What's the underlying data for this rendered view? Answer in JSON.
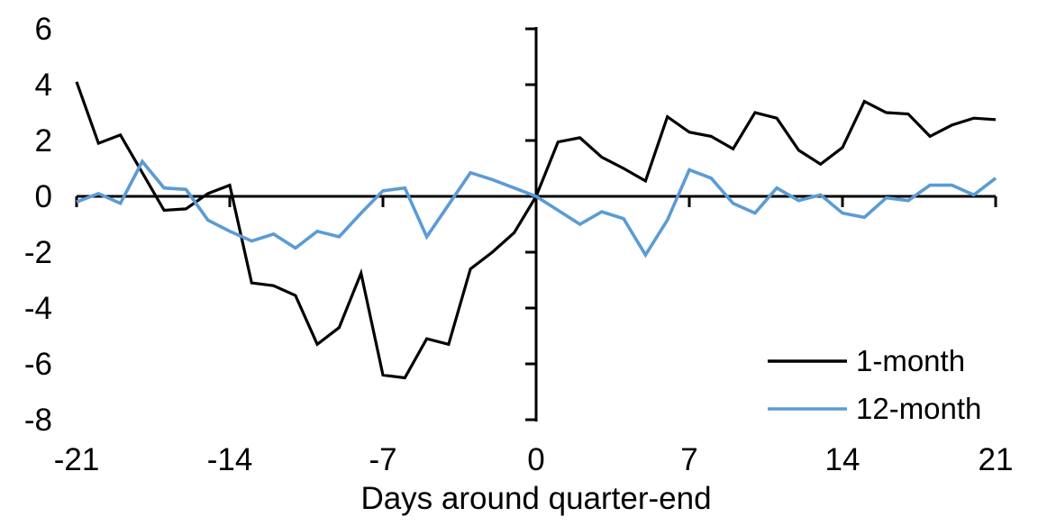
{
  "figure": {
    "title": "",
    "background_color": "#ffffff",
    "axis_color": "#000000"
  },
  "chart_data": {
    "type": "line",
    "title": "",
    "xlabel": "Days around quarter-end",
    "ylabel": "",
    "xlim": [
      -21,
      21
    ],
    "ylim": [
      -8,
      6
    ],
    "grid": false,
    "xticks": [
      -21,
      -14,
      -7,
      0,
      7,
      14,
      21
    ],
    "yticks": [
      6,
      4,
      2,
      0,
      -2,
      -4,
      -6,
      -8
    ],
    "legend_position": "right-center",
    "x": [
      -21,
      -20,
      -19,
      -18,
      -17,
      -16,
      -15,
      -14,
      -13,
      -12,
      -11,
      -10,
      -9,
      -8,
      -7,
      -6,
      -5,
      -4,
      -3,
      -2,
      -1,
      0,
      1,
      2,
      3,
      4,
      5,
      6,
      7,
      8,
      9,
      10,
      11,
      12,
      13,
      14,
      15,
      16,
      17,
      18,
      19,
      20,
      21
    ],
    "series": [
      {
        "name": "1-month",
        "color": "#000000",
        "stroke_width": 3.2,
        "values": [
          4.1,
          1.9,
          2.2,
          0.85,
          -0.5,
          -0.45,
          0.1,
          0.4,
          -3.1,
          -3.2,
          -3.55,
          -5.3,
          -4.7,
          -2.75,
          -6.4,
          -6.5,
          -5.1,
          -5.3,
          -2.6,
          -2.0,
          -1.3,
          0,
          1.95,
          2.1,
          1.4,
          1.0,
          0.55,
          2.85,
          2.3,
          2.15,
          1.7,
          3.0,
          2.8,
          1.65,
          1.15,
          1.75,
          3.4,
          3.0,
          2.95,
          2.15,
          2.55,
          2.8,
          2.75
        ]
      },
      {
        "name": "12-month",
        "color": "#5b9bd5",
        "stroke_width": 3.6,
        "values": [
          -0.2,
          0.1,
          -0.25,
          1.25,
          0.3,
          0.25,
          -0.85,
          -1.25,
          -1.6,
          -1.35,
          -1.85,
          -1.25,
          -1.45,
          -0.6,
          0.2,
          0.3,
          -1.45,
          -0.3,
          0.85,
          0.6,
          0.3,
          0,
          -0.5,
          -1.0,
          -0.55,
          -0.8,
          -2.1,
          -0.85,
          0.95,
          0.65,
          -0.25,
          -0.6,
          0.3,
          -0.15,
          0.05,
          -0.6,
          -0.75,
          -0.05,
          -0.15,
          0.4,
          0.4,
          0.05,
          0.65
        ]
      }
    ]
  },
  "legend": {
    "items": [
      {
        "label": "1-month",
        "color": "#000000"
      },
      {
        "label": "12-month",
        "color": "#5b9bd5"
      }
    ]
  }
}
